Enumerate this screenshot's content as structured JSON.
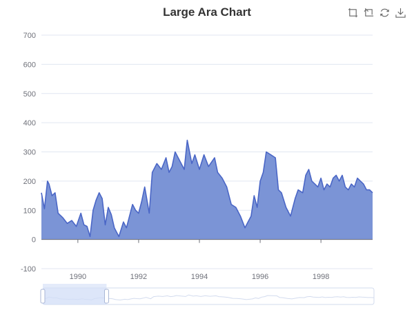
{
  "title": "Large Ara Chart",
  "toolbox": [
    {
      "name": "zoom-icon"
    },
    {
      "name": "zoom-reset-icon"
    },
    {
      "name": "restore-icon"
    },
    {
      "name": "download-icon"
    }
  ],
  "colors": {
    "area_fill": "#7b94d6",
    "line": "#4a66c6",
    "axis": "#6e7079",
    "grid": "#e0e6f1",
    "zoom_selection": "#d2def7",
    "zoom_border": "#d2dbee"
  },
  "chart_data": {
    "type": "area",
    "title": "Large Ara Chart",
    "xlabel": "",
    "ylabel": "",
    "ylim": [
      -100,
      700
    ],
    "y_ticks": [
      -100,
      0,
      100,
      200,
      300,
      400,
      500,
      600,
      700
    ],
    "x_tick_labels": [
      "1990",
      "1992",
      "1994",
      "1996",
      "1998"
    ],
    "x_range": [
      "1988-10",
      "1999-09"
    ],
    "grid": true,
    "legend": "none",
    "data_zoom": {
      "start_year": 1988.8,
      "end_year": 1990.9
    },
    "x": [
      1988.8,
      1988.9,
      1989.0,
      1989.05,
      1989.15,
      1989.25,
      1989.35,
      1989.5,
      1989.65,
      1989.8,
      1989.95,
      1990.1,
      1990.2,
      1990.3,
      1990.4,
      1990.5,
      1990.6,
      1990.7,
      1990.8,
      1990.9,
      1991.0,
      1991.1,
      1991.2,
      1991.35,
      1991.5,
      1991.6,
      1991.7,
      1991.8,
      1991.9,
      1992.0,
      1992.1,
      1992.2,
      1992.35,
      1992.45,
      1992.6,
      1992.75,
      1992.9,
      1993.0,
      1993.1,
      1993.2,
      1993.35,
      1993.5,
      1993.6,
      1993.75,
      1993.85,
      1994.0,
      1994.15,
      1994.3,
      1994.5,
      1994.6,
      1994.75,
      1994.9,
      1995.05,
      1995.2,
      1995.35,
      1995.5,
      1995.6,
      1995.7,
      1995.8,
      1995.9,
      1996.0,
      1996.1,
      1996.2,
      1996.35,
      1996.5,
      1996.6,
      1996.7,
      1996.85,
      1997.0,
      1997.15,
      1997.25,
      1997.4,
      1997.5,
      1997.6,
      1997.7,
      1997.8,
      1997.9,
      1998.0,
      1998.1,
      1998.2,
      1998.3,
      1998.4,
      1998.5,
      1998.6,
      1998.7,
      1998.8,
      1998.9,
      1999.0,
      1999.1,
      1999.2,
      1999.3,
      1999.4,
      1999.5,
      1999.6,
      1999.7
    ],
    "y": [
      160,
      105,
      200,
      190,
      150,
      160,
      90,
      75,
      55,
      65,
      45,
      90,
      50,
      45,
      10,
      100,
      135,
      160,
      140,
      50,
      110,
      85,
      40,
      10,
      60,
      40,
      80,
      120,
      100,
      90,
      130,
      180,
      90,
      230,
      260,
      240,
      280,
      230,
      250,
      300,
      270,
      240,
      340,
      260,
      290,
      240,
      290,
      250,
      280,
      230,
      210,
      180,
      120,
      110,
      80,
      40,
      60,
      80,
      150,
      110,
      200,
      230,
      300,
      290,
      280,
      170,
      160,
      110,
      80,
      140,
      170,
      160,
      220,
      240,
      200,
      190,
      180,
      210,
      170,
      190,
      180,
      210,
      220,
      200,
      220,
      180,
      170,
      190,
      180,
      210,
      200,
      190,
      170,
      170,
      160
    ]
  }
}
